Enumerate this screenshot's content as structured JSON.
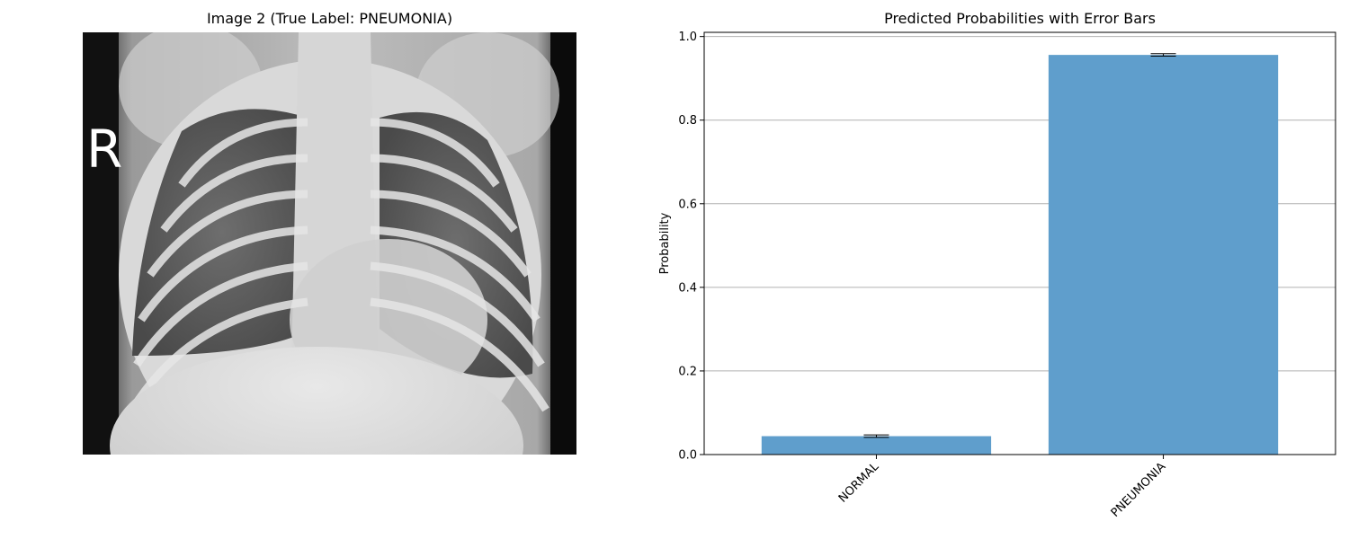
{
  "image_panel": {
    "title": "Image 2 (True Label: PNEUMONIA)",
    "marker_letter": "R"
  },
  "chart_data": {
    "type": "bar",
    "title": "Predicted Probabilities with Error Bars",
    "xlabel": "",
    "ylabel": "Probability",
    "categories": [
      "NORMAL",
      "PNEUMONIA"
    ],
    "values": [
      0.044,
      0.956
    ],
    "errors": [
      0.003,
      0.003
    ],
    "ylim": [
      0,
      1.01
    ],
    "yticks": [
      0.0,
      0.2,
      0.4,
      0.6,
      0.8,
      1.0
    ],
    "ytick_labels": [
      "0.0",
      "0.2",
      "0.4",
      "0.6",
      "0.8",
      "1.0"
    ],
    "grid": "y",
    "bar_color": "#5f9ecc"
  }
}
